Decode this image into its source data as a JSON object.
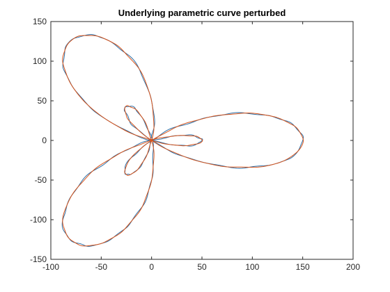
{
  "chart_data": {
    "type": "line",
    "title": "Underlying parametric curve perturbed",
    "xlabel": "",
    "ylabel": "",
    "xlim": [
      -100,
      200
    ],
    "ylim": [
      -150,
      150
    ],
    "xticks": [
      -100,
      -50,
      0,
      50,
      100,
      150,
      200
    ],
    "yticks": [
      -150,
      -100,
      -50,
      0,
      50,
      100,
      150
    ],
    "grid": false,
    "curve": {
      "form": "r = 100*cos(3t) + 50, x = r*cos(t), y = r*sin(t)",
      "t_range": [
        0,
        6.2832
      ],
      "samples": 720
    },
    "series": [
      {
        "color": "#2a6fa8",
        "perturbation": 1.2
      },
      {
        "color": "#d95319",
        "perturbation": 0.6
      }
    ],
    "axis_color": "#262626"
  }
}
